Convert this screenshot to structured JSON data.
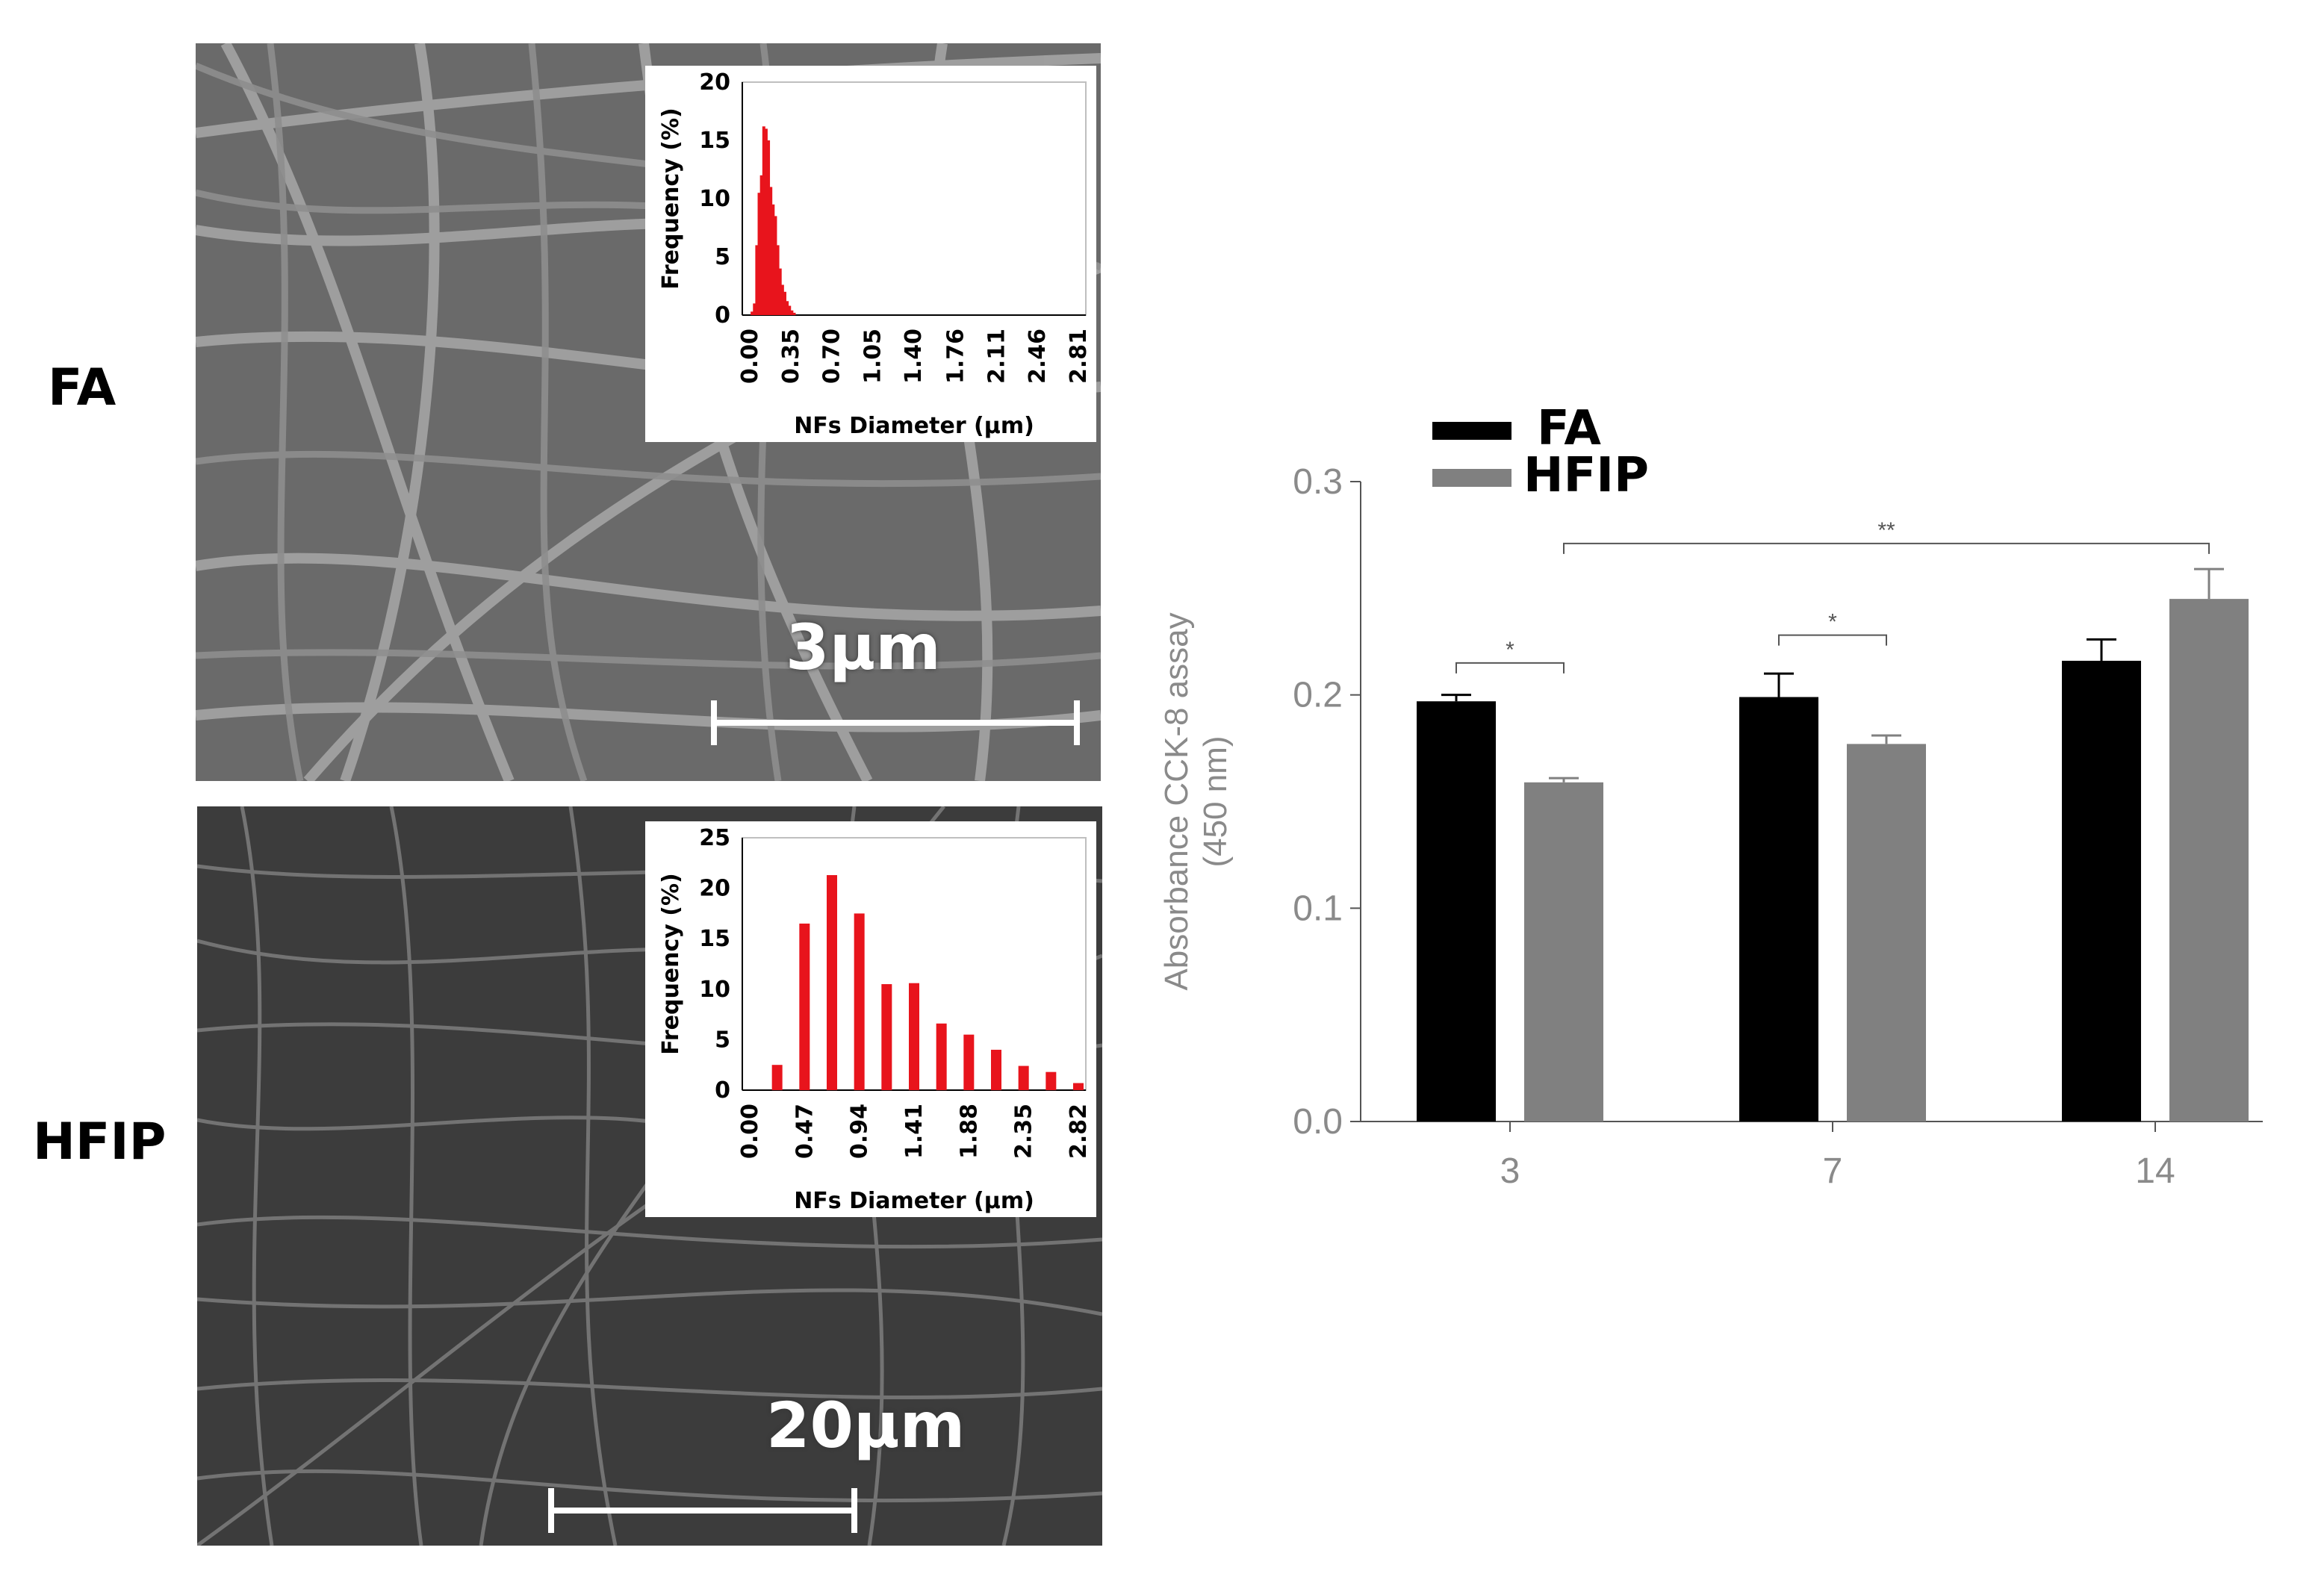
{
  "row_labels": {
    "fa": "FA",
    "hfip": "HFIP"
  },
  "sem": {
    "fa_scale_label": "3μm",
    "hfip_scale_label": "20μm"
  },
  "chart_data": [
    {
      "type": "bar",
      "panel": "FA inset histogram",
      "xlabel": "NFs Diameter (µm)",
      "ylabel": "Frequency (%)",
      "ylim": [
        0,
        20
      ],
      "yticks": [
        "0",
        "5",
        "10",
        "15",
        "20"
      ],
      "xticks": [
        "0.00",
        "0.35",
        "0.70",
        "1.05",
        "1.40",
        "1.76",
        "2.11",
        "2.46",
        "2.81"
      ],
      "xlim": [
        0,
        2.81
      ],
      "x": [
        0.02,
        0.04,
        0.06,
        0.08,
        0.1,
        0.12,
        0.14,
        0.16,
        0.18,
        0.2,
        0.22,
        0.24,
        0.26,
        0.28,
        0.3,
        0.32,
        0.34,
        0.36,
        0.38
      ],
      "values": [
        0.3,
        1.0,
        6.0,
        10.5,
        12.0,
        16.2,
        16.0,
        15.0,
        11.0,
        9.5,
        8.5,
        6.0,
        4.0,
        2.6,
        2.0,
        1.2,
        0.8,
        0.4,
        0.2
      ],
      "color": "#e8141c"
    },
    {
      "type": "bar",
      "panel": "HFIP inset histogram",
      "xlabel": "NFs Diameter (µm)",
      "ylabel": "Frequency (%)",
      "ylim": [
        0,
        25
      ],
      "yticks": [
        "0",
        "5",
        "10",
        "15",
        "20",
        "25"
      ],
      "xticks": [
        "0.00",
        "0.47",
        "0.94",
        "1.41",
        "1.88",
        "2.35",
        "2.82"
      ],
      "xlim": [
        0,
        2.82
      ],
      "x": [
        0.235,
        0.47,
        0.705,
        0.94,
        1.175,
        1.41,
        1.645,
        1.88,
        2.115,
        2.35,
        2.585,
        2.82
      ],
      "values": [
        2.5,
        16.5,
        21.3,
        17.5,
        10.5,
        10.6,
        6.6,
        5.5,
        4.0,
        2.4,
        1.8,
        0.7
      ],
      "color": "#e8141c"
    },
    {
      "type": "bar",
      "panel": "CCK-8 assay",
      "ylabel": "Absorbance CCK-8 assay\n(450 nm)",
      "ylabel_lines": [
        "Absorbance CCK-8 assay",
        "(450 nm)"
      ],
      "ylim": [
        0,
        0.3
      ],
      "yticks": [
        "0.0",
        "0.1",
        "0.2",
        "0.3"
      ],
      "categories": [
        "3",
        "7",
        "14"
      ],
      "series": [
        {
          "name": "FA",
          "values": [
            0.197,
            0.199,
            0.216
          ],
          "errors": [
            0.003,
            0.011,
            0.01
          ],
          "color": "#000000"
        },
        {
          "name": "HFIP",
          "values": [
            0.159,
            0.177,
            0.245
          ],
          "errors": [
            0.002,
            0.004,
            0.014
          ],
          "color": "#808080"
        }
      ],
      "legend": "top-left",
      "significance": [
        {
          "label": "*",
          "from": "3-FA",
          "to": "3-HFIP"
        },
        {
          "label": "*",
          "from": "7-FA",
          "to": "7-HFIP"
        },
        {
          "label": "**",
          "from": "3-HFIP",
          "to": "14-HFIP"
        }
      ]
    }
  ]
}
